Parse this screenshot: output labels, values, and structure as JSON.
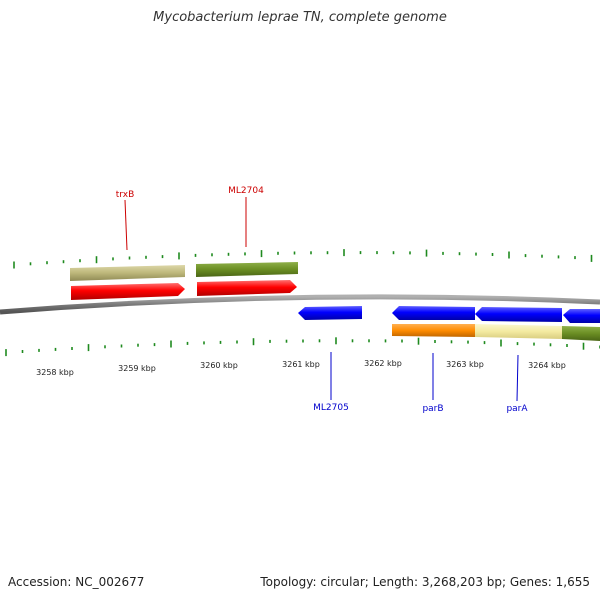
{
  "header": {
    "title": "Mycobacterium leprae TN, complete genome"
  },
  "footer": {
    "accession": "Accession: NC_002677",
    "summary": "Topology: circular; Length: 3,268,203 bp; Genes: 1,655"
  },
  "colors": {
    "backbone": "#7a7a7a",
    "tick": "#1f8a1f",
    "forward_gene": "#ff0000",
    "reverse_gene": "#0000ff",
    "gene_label_forward": "#cc0000",
    "gene_label_reverse": "#0000cc",
    "annot_khaki": "#bdb77a",
    "annot_olive": "#6b8e23",
    "annot_orange": "#ff8c00",
    "annot_paleyellow": "#f3eaa0"
  },
  "scale_labels": [
    "3258 kbp",
    "3259 kbp",
    "3260 kbp",
    "3261 kbp",
    "3262 kbp",
    "3263 kbp",
    "3264 kbp"
  ],
  "genes": [
    {
      "id": "trxB",
      "label": "trxB",
      "strand": "forward"
    },
    {
      "id": "ML2704",
      "label": "ML2704",
      "strand": "forward"
    },
    {
      "id": "ML2705",
      "label": "ML2705",
      "strand": "reverse"
    },
    {
      "id": "parB",
      "label": "parB",
      "strand": "reverse"
    },
    {
      "id": "parA",
      "label": "parA",
      "strand": "reverse"
    }
  ]
}
